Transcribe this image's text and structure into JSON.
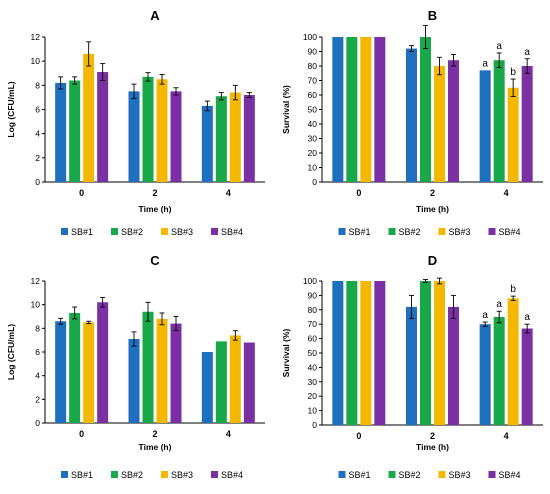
{
  "colors": {
    "SB#1": "#1f6fbf",
    "SB#2": "#18a84a",
    "SB#3": "#f5b800",
    "SB#4": "#7a2fa3",
    "axis": "#000000",
    "errorbar": "#000000"
  },
  "chart_data": [
    {
      "panel": "A",
      "type": "bar",
      "title": "A",
      "xlabel": "Time (h)",
      "ylabel": "Log (CFU/mL)",
      "ylim": [
        0,
        12
      ],
      "yticks": [
        0,
        2,
        4,
        6,
        8,
        10,
        12
      ],
      "categories": [
        "0",
        "2",
        "4"
      ],
      "legend_position": "bottom",
      "series": [
        {
          "name": "SB#1",
          "values": [
            8.2,
            7.5,
            6.3
          ],
          "errors": [
            0.5,
            0.6,
            0.4
          ],
          "labels": [
            "",
            "",
            ""
          ]
        },
        {
          "name": "SB#2",
          "values": [
            8.4,
            8.7,
            7.1
          ],
          "errors": [
            0.3,
            0.35,
            0.3
          ],
          "labels": [
            "",
            "",
            ""
          ]
        },
        {
          "name": "SB#3",
          "values": [
            10.6,
            8.5,
            7.4
          ],
          "errors": [
            1.0,
            0.4,
            0.6
          ],
          "labels": [
            "",
            "",
            ""
          ]
        },
        {
          "name": "SB#4",
          "values": [
            9.1,
            7.5,
            7.2
          ],
          "errors": [
            0.7,
            0.3,
            0.2
          ],
          "labels": [
            "",
            "",
            ""
          ]
        }
      ]
    },
    {
      "panel": "B",
      "type": "bar",
      "title": "B",
      "xlabel": "Time (h)",
      "ylabel": "Survival (%)",
      "ylim": [
        0,
        100
      ],
      "yticks": [
        0,
        10,
        20,
        30,
        40,
        50,
        60,
        70,
        80,
        90,
        100
      ],
      "categories": [
        "0",
        "2",
        "4"
      ],
      "legend_position": "bottom",
      "series": [
        {
          "name": "SB#1",
          "values": [
            100,
            92,
            77
          ],
          "errors": [
            0,
            2,
            0
          ],
          "labels": [
            "",
            "",
            "a"
          ]
        },
        {
          "name": "SB#2",
          "values": [
            100,
            100,
            84
          ],
          "errors": [
            0,
            8,
            5
          ],
          "labels": [
            "",
            "",
            "a"
          ]
        },
        {
          "name": "SB#3",
          "values": [
            100,
            80,
            65
          ],
          "errors": [
            0,
            6,
            6
          ],
          "labels": [
            "",
            "",
            "b"
          ]
        },
        {
          "name": "SB#4",
          "values": [
            100,
            84,
            80
          ],
          "errors": [
            0,
            4,
            5
          ],
          "labels": [
            "",
            "",
            "a"
          ]
        }
      ]
    },
    {
      "panel": "C",
      "type": "bar",
      "title": "C",
      "xlabel": "Time (h)",
      "ylabel": "Log (CFU/mL)",
      "ylim": [
        0,
        12
      ],
      "yticks": [
        0,
        2,
        4,
        6,
        8,
        10,
        12
      ],
      "categories": [
        "0",
        "2",
        "4"
      ],
      "legend_position": "bottom",
      "series": [
        {
          "name": "SB#1",
          "values": [
            8.6,
            7.1,
            6.0
          ],
          "errors": [
            0.25,
            0.6,
            0
          ],
          "labels": [
            "",
            "",
            ""
          ]
        },
        {
          "name": "SB#2",
          "values": [
            9.3,
            9.4,
            6.9
          ],
          "errors": [
            0.5,
            0.8,
            0
          ],
          "labels": [
            "",
            "",
            ""
          ]
        },
        {
          "name": "SB#3",
          "values": [
            8.5,
            8.8,
            7.4
          ],
          "errors": [
            0.1,
            0.5,
            0.4
          ],
          "labels": [
            "",
            "",
            ""
          ]
        },
        {
          "name": "SB#4",
          "values": [
            10.2,
            8.4,
            6.8
          ],
          "errors": [
            0.4,
            0.6,
            0
          ],
          "labels": [
            "",
            "",
            ""
          ]
        }
      ]
    },
    {
      "panel": "D",
      "type": "bar",
      "title": "D",
      "xlabel": "Time (h)",
      "ylabel": "Survival (%)",
      "ylim": [
        0,
        100
      ],
      "yticks": [
        0,
        10,
        20,
        30,
        40,
        50,
        60,
        70,
        80,
        90,
        100
      ],
      "categories": [
        "0",
        "2",
        "4"
      ],
      "legend_position": "bottom",
      "series": [
        {
          "name": "SB#1",
          "values": [
            100,
            82,
            70
          ],
          "errors": [
            0,
            8,
            1.5
          ],
          "labels": [
            "",
            "",
            "a"
          ]
        },
        {
          "name": "SB#2",
          "values": [
            100,
            100,
            75
          ],
          "errors": [
            0,
            1,
            4
          ],
          "labels": [
            "",
            "",
            "a"
          ]
        },
        {
          "name": "SB#3",
          "values": [
            100,
            100,
            88
          ],
          "errors": [
            0,
            2,
            1.5
          ],
          "labels": [
            "",
            "",
            "b"
          ]
        },
        {
          "name": "SB#4",
          "values": [
            100,
            82,
            67
          ],
          "errors": [
            0,
            8,
            3
          ],
          "labels": [
            "",
            "",
            "a"
          ]
        }
      ]
    }
  ]
}
